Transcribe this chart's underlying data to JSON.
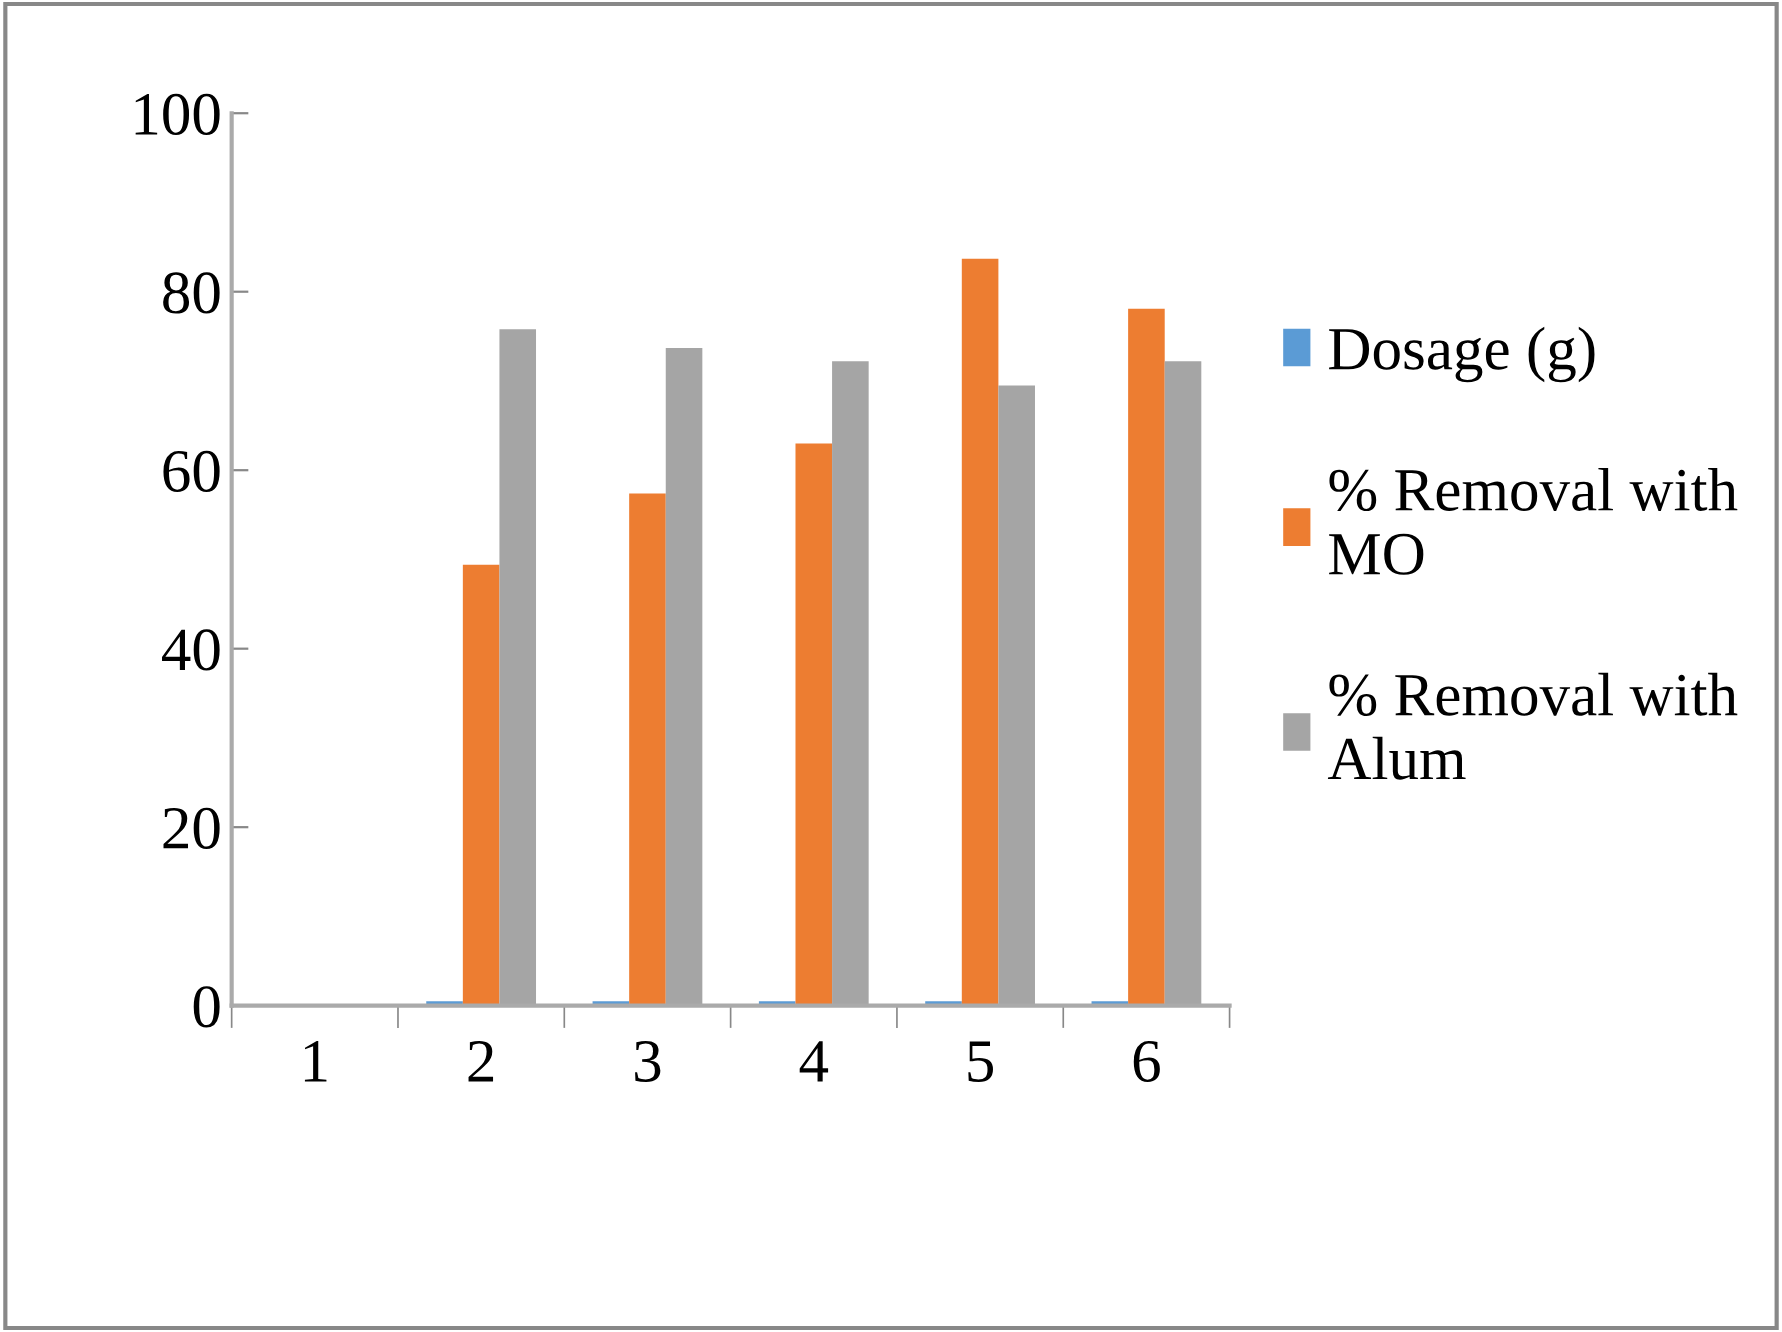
{
  "chart_data": {
    "type": "bar",
    "categories": [
      "1",
      "2",
      "3",
      "4",
      "5",
      "6"
    ],
    "series": [
      {
        "name": "Dosage (g)",
        "color": "#5b9bd5",
        "values": [
          0,
          0.5,
          0.5,
          0.5,
          0.5,
          0.5
        ]
      },
      {
        "name": "% Removal with MO",
        "color": "#ed7d31",
        "values": [
          0,
          49.4,
          57.4,
          63.0,
          83.7,
          78.1
        ]
      },
      {
        "name": "% Removal with Alum",
        "color": "#a5a5a5",
        "values": [
          0,
          75.8,
          73.7,
          72.2,
          69.5,
          72.2
        ]
      }
    ],
    "ylim": [
      0,
      100
    ],
    "yticks": [
      0,
      20,
      40,
      60,
      80,
      100
    ],
    "grid": false,
    "legend": "right"
  }
}
